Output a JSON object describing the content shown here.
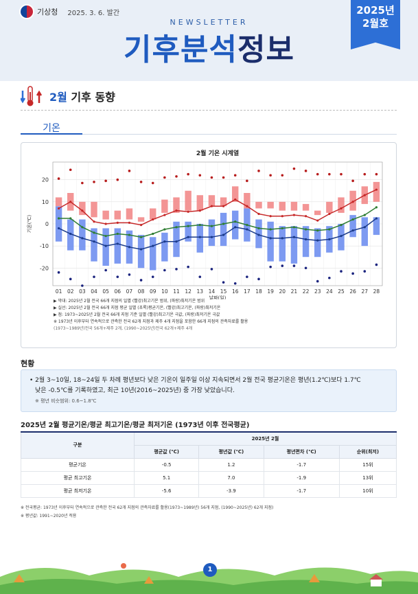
{
  "header": {
    "org": "기상청",
    "issued": "2025. 3. 6. 발간",
    "newsletter": "NEWSLETTER",
    "title_a": "기후분석",
    "title_b": "정보",
    "badge_year": "2025년",
    "badge_month": "2월호"
  },
  "section": {
    "title_month": "2월",
    "title_rest": " 기후 동향",
    "tab": "기온"
  },
  "chart_data": {
    "type": "line",
    "title": "2월 기온 시계열",
    "xlabel": "날짜(일)",
    "ylabel": "기온(℃)",
    "ylim": [
      -28,
      28
    ],
    "yticks": [
      -20,
      -10,
      0,
      10,
      20
    ],
    "categories": [
      "01",
      "02",
      "03",
      "04",
      "05",
      "06",
      "07",
      "08",
      "09",
      "10",
      "11",
      "12",
      "13",
      "14",
      "15",
      "16",
      "17",
      "18",
      "19",
      "20",
      "21",
      "22",
      "23",
      "24",
      "25",
      "26",
      "27",
      "28"
    ],
    "series": [
      {
        "name": "평균기온",
        "color": "#2e7d32",
        "values": [
          2.5,
          2.5,
          -1.5,
          -4,
          -5.5,
          -4.5,
          -5,
          -6,
          -4.5,
          -2.5,
          -1.5,
          -1,
          -0.5,
          -1,
          0,
          1,
          -0.5,
          -2,
          -2.5,
          -2,
          -1.5,
          -2.5,
          -3,
          -2.5,
          -0.5,
          2,
          4,
          7.5
        ]
      },
      {
        "name": "최고기온",
        "color": "#c62828",
        "values": [
          7,
          10,
          6,
          1,
          0,
          0.5,
          0.5,
          -0.5,
          2,
          4,
          6,
          5.5,
          6,
          8,
          8,
          11,
          8,
          4.5,
          3.5,
          3.5,
          4,
          3.5,
          1.5,
          4.5,
          7,
          10,
          13,
          15.5
        ]
      },
      {
        "name": "최저기온",
        "color": "#1a3a8a",
        "values": [
          -2,
          -4.5,
          -6.5,
          -8,
          -10,
          -9,
          -10.5,
          -11.5,
          -10,
          -8,
          -8,
          -6,
          -6,
          -6,
          -5,
          -1.5,
          -2.5,
          -5,
          -6.5,
          -6.5,
          -6,
          -7,
          -7.5,
          -7,
          -5.5,
          -3,
          -1.5,
          2.5
        ]
      }
    ],
    "max_range": {
      "low": [
        8,
        6,
        4,
        3,
        2,
        2,
        2,
        1,
        2,
        5,
        5,
        6,
        6,
        8,
        8,
        10,
        7,
        7,
        7,
        6,
        6,
        6,
        4,
        5,
        5,
        6,
        9,
        10
      ],
      "high": [
        12,
        14,
        10,
        10,
        6,
        6,
        7,
        3,
        7,
        11,
        12,
        15,
        13,
        13,
        12,
        17,
        14,
        10,
        10,
        10,
        10,
        9,
        6,
        10,
        12,
        15,
        17,
        19
      ]
    },
    "min_range": {
      "low": [
        -8,
        -12,
        -12,
        -17,
        -19,
        -18,
        -18,
        -20,
        -21,
        -17,
        -15,
        -8,
        -13,
        -10,
        -10,
        -7,
        -8,
        -11,
        -17,
        -17,
        -18,
        -15,
        -15,
        -13,
        -12,
        -6,
        -10,
        -5
      ],
      "high": [
        8,
        2,
        2,
        -2,
        -2,
        -2,
        -3,
        -5,
        -6,
        -4,
        1,
        1,
        0,
        2,
        5,
        6,
        7,
        2,
        1,
        -1,
        -1,
        -1,
        -2,
        -1,
        0,
        4,
        3,
        3
      ]
    },
    "max_record": [
      20.5,
      24.5,
      18.5,
      19,
      19.5,
      20,
      24,
      19,
      18.5,
      21,
      21.5,
      22.5,
      22,
      21,
      21,
      22,
      19.5,
      24,
      22,
      22,
      25,
      24,
      22.5,
      22.5,
      22.5,
      19.5,
      22.5,
      22.5
    ],
    "min_record": [
      -22,
      -25,
      -28,
      -24,
      -21,
      -24,
      -23,
      -25.5,
      -24,
      -21,
      -20.5,
      -19.5,
      -24,
      -20.5,
      -26.5,
      -27,
      -24,
      -25,
      -19.5,
      -19,
      -19,
      -20,
      -26,
      -24.5,
      -21.5,
      -22.5,
      -21.5,
      -18.5
    ]
  },
  "notes": [
    "▶ 막대: 2025년 2월 전국 66개 지점의 일별 (빨강)최고기온 범위, (파랑)최저기온 범위",
    "▶ 실선: 2025년 2월 전국 66개 지점 평균 일별 (초록)평균기온, (빨강)최고기온, (파랑)최저기온",
    "▶ 점: 1973~2025년 2월 전국 66개 지점 기준 일별 (빨강)최고기온 극값, (파랑)최저기온 극값",
    "※ 1973년 이후부터 연속적으로 관측한 전국 62개 지점과 제주 4개 지점을 포함한 66개 지점의 관측자료를 활용",
    "(1973~1989년)전국 56개+제주 2개, (1990~2025년)전국 62개+제주 4개"
  ],
  "status": {
    "heading": "현황",
    "line1": "• 2월 3~10일, 18~24일 두 차례 평년보다 낮은 기온이 일주일 이상 지속되면서 2월 전국 평균기온은 평년(1.2℃)보다 1.7℃",
    "line2": "낮은 -0.5℃를 기록하였고, 최근 10년(2016~2025년) 중 가장 낮았습니다.",
    "note": "※ 평년 비슷범위: 0.6~1.8℃"
  },
  "table": {
    "heading": "2025년 2월 평균기온/평균 최고기온/평균 최저기온 (1973년 이후 전국평균)",
    "col_group": "구분",
    "span_header": "2025년 2월",
    "columns": [
      "평균값 (℃)",
      "평년값 (℃)",
      "평년편차 (℃)",
      "순위(최저)"
    ],
    "rows": [
      {
        "label": "평균기온",
        "cells": [
          "-0.5",
          "1.2",
          "-1.7",
          "15위"
        ]
      },
      {
        "label": "평균 최고기온",
        "cells": [
          "5.1",
          "7.0",
          "-1.9",
          "13위"
        ]
      },
      {
        "label": "평균 최저기온",
        "cells": [
          "-5.6",
          "-3.9",
          "-1.7",
          "10위"
        ]
      }
    ]
  },
  "footnotes": [
    "※ 전국평균: 1973년 이후부터 연속적으로 관측한 전국 62개 지점의 관측자료를 활용(1973~1989년) 56개 지점, (1990~2025년) 62개 지점)",
    "※ 평년값: 1991~2020년 적용"
  ],
  "page": "1"
}
